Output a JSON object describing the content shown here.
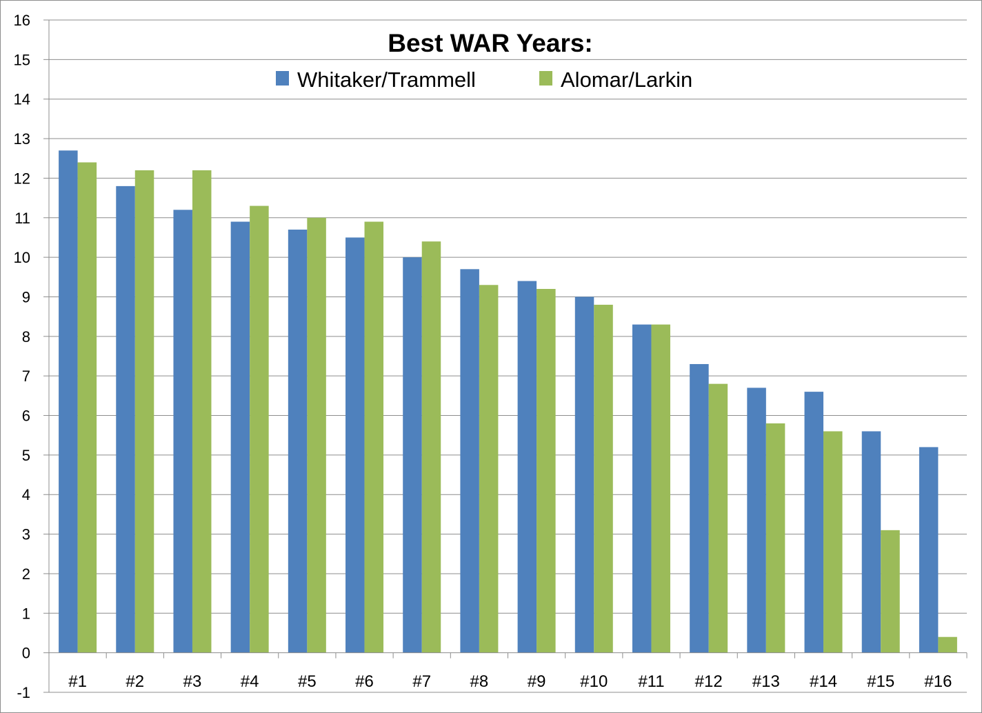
{
  "chart_data": {
    "type": "bar",
    "title": "Best WAR Years:",
    "categories": [
      "#1",
      "#2",
      "#3",
      "#4",
      "#5",
      "#6",
      "#7",
      "#8",
      "#9",
      "#10",
      "#11",
      "#12",
      "#13",
      "#14",
      "#15",
      "#16"
    ],
    "series": [
      {
        "name": "Whitaker/Trammell",
        "color": "#4f81bd",
        "values": [
          12.7,
          11.8,
          11.2,
          10.9,
          10.7,
          10.5,
          10.0,
          9.7,
          9.4,
          9.0,
          8.3,
          7.3,
          6.7,
          6.6,
          5.6,
          5.2
        ]
      },
      {
        "name": "Alomar/Larkin",
        "color": "#9bbb59",
        "values": [
          12.4,
          12.2,
          12.2,
          11.3,
          11.0,
          10.9,
          10.4,
          9.3,
          9.2,
          8.8,
          8.3,
          6.8,
          5.8,
          5.6,
          3.1,
          0.4
        ]
      }
    ],
    "ylim": [
      -1,
      16
    ],
    "yticks": [
      "-1",
      "0",
      "1",
      "2",
      "3",
      "4",
      "5",
      "6",
      "7",
      "8",
      "9",
      "10",
      "11",
      "12",
      "13",
      "14",
      "15",
      "16"
    ],
    "grid": true,
    "legend": "top-center"
  }
}
